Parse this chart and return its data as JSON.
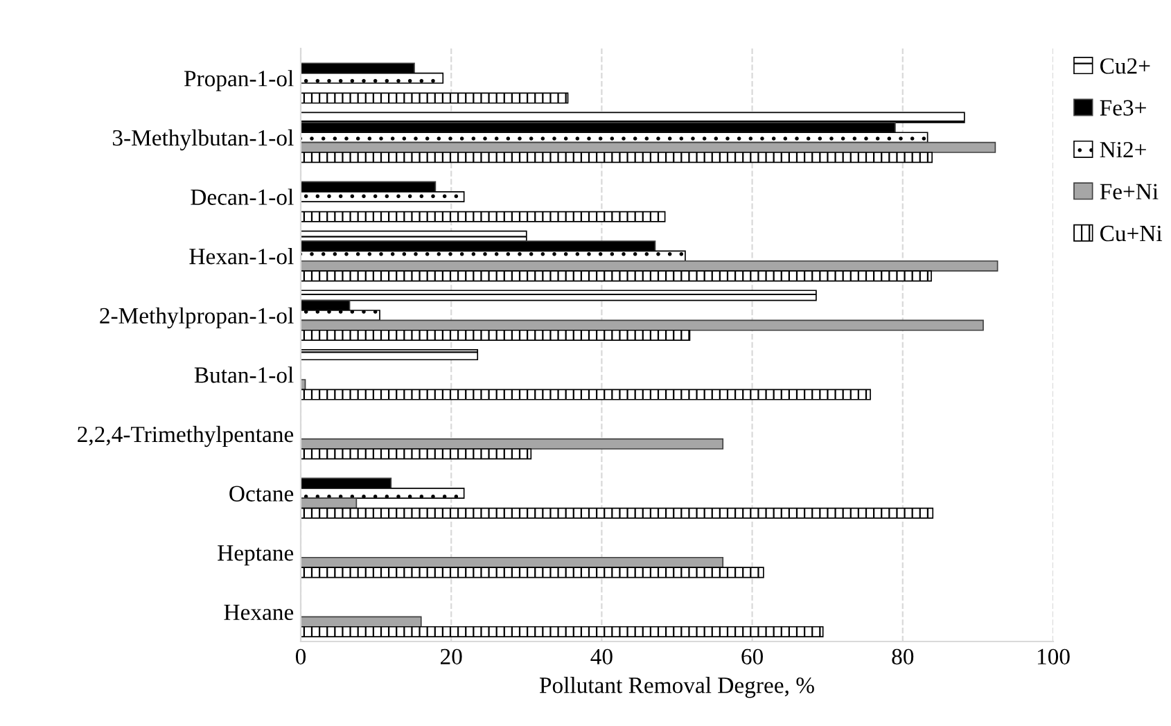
{
  "chart_data": {
    "type": "bar",
    "orientation": "horizontal",
    "xlabel": "Pollutant Removal Degree, %",
    "categories": [
      "Propan-1-ol",
      "3-Methylbutan-1-ol",
      "Decan-1-ol",
      "Hexan-1-ol",
      "2-Methylpropan-1-ol",
      "Butan-1-ol",
      "2,2,4-Trimethylpentane",
      "Octane",
      "Heptane",
      "Hexane"
    ],
    "series": [
      {
        "name": "Cu2+",
        "color": "#000000",
        "values": [
          null,
          88.2,
          null,
          30,
          68.5,
          23.5,
          null,
          null,
          null,
          null
        ]
      },
      {
        "name": "Fe3+",
        "color": "#000000",
        "values": [
          15.1,
          79,
          17.9,
          47.1,
          6.5,
          null,
          null,
          12,
          null,
          null
        ]
      },
      {
        "name": "Ni2+",
        "color": "#000000",
        "values": [
          18.9,
          83.3,
          21.7,
          51.1,
          10.5,
          null,
          null,
          21.7,
          null,
          null
        ]
      },
      {
        "name": "Fe+Ni",
        "color": "#a6a6a6",
        "values": [
          null,
          92.3,
          null,
          92.6,
          90.7,
          0.6,
          56.1,
          7.4,
          56.1,
          16
        ]
      },
      {
        "name": "Cu+Ni",
        "color": "#000000",
        "values": [
          35.5,
          83.9,
          48.4,
          83.8,
          51.7,
          75.7,
          30.6,
          84,
          61.5,
          69.4
        ]
      }
    ],
    "xlim": [
      0,
      100
    ],
    "xticks": [
      0,
      20,
      40,
      60,
      80,
      100
    ],
    "grid": "x",
    "legend": "top right"
  }
}
